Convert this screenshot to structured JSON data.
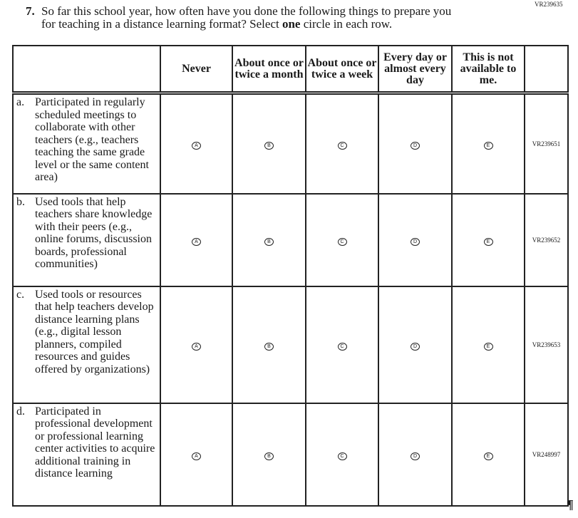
{
  "top_code": "VR239635",
  "question": {
    "number": "7.",
    "line1": "So far this school year, how often have you done the following things to prepare you",
    "line2_pre": "for teaching in a distance learning format? Select ",
    "line2_bold": "one",
    "line2_post": " circle in each row."
  },
  "columns": [
    "Never",
    "About once or twice a month",
    "About once or twice a week",
    "Every day or almost every day",
    "This is not available to me."
  ],
  "bubbles": [
    "A",
    "B",
    "C",
    "D",
    "E"
  ],
  "rows": [
    {
      "letter": "a.",
      "text": "Participated in regularly scheduled meetings to collaborate with other teachers (e.g., teachers teaching the same grade level or the same content area)",
      "code": "VR239651"
    },
    {
      "letter": "b.",
      "text": "Used tools that help teachers share knowledge with their peers (e.g., online forums, discussion boards, professional communities)",
      "code": "VR239652"
    },
    {
      "letter": "c.",
      "text": "Used tools or resources that help teachers develop distance learning plans (e.g., digital lesson planners, compiled resources and guides offered by organizations)",
      "code": "VR239653"
    },
    {
      "letter": "d.",
      "text": "Participated in professional development or professional learning center activities to acquire additional training in distance learning",
      "code": "VR248997"
    }
  ],
  "pilcrow": "¶"
}
